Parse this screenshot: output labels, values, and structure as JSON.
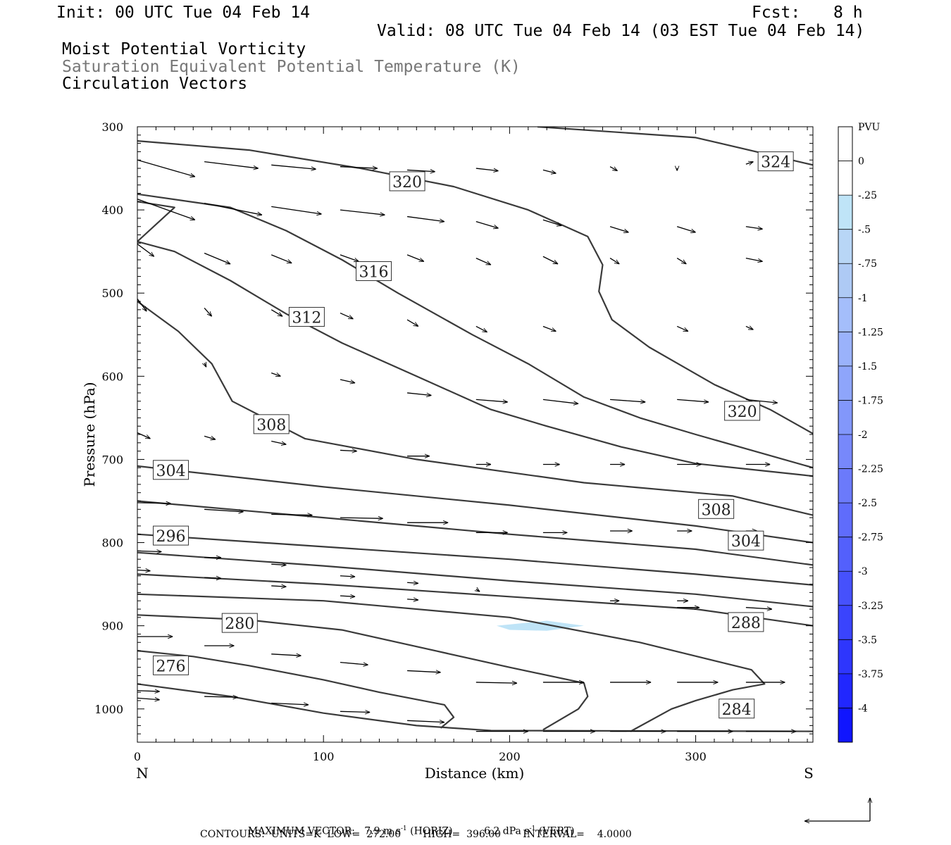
{
  "header": {
    "init": "Init: 00 UTC Tue 04 Feb 14",
    "fcst_label": "Fcst:",
    "fcst_value": "8 h",
    "valid": "Valid: 08 UTC Tue 04 Feb 14 (03 EST Tue 04 Feb 14)",
    "field1": "Moist Potential Vorticity",
    "field2": "Saturation Equivalent Potential Temperature (K)",
    "field3": "Circulation Vectors"
  },
  "footer": {
    "max_vector_label": "MAXIMUM VECTOR:",
    "horiz_value": "7.9",
    "horiz_unit": "m s",
    "horiz_tag": "(HORIZ)",
    "vert_value": "6.2",
    "vert_unit": "dPa s",
    "vert_tag": "(VERT)",
    "exp": "-1",
    "contours_line": "CONTOURS:  UNITS=K  LOW=  272.00       HIGH=  396.00       INTERVAL=    4.0000"
  },
  "colors": {
    "contour": "#3a3a3a",
    "vector": "#000000",
    "mpv_fill": "#bfe4f7",
    "colorbar": [
      "#ffffff",
      "#ffffff",
      "#bfe4f7",
      "#b8d6f6",
      "#aecaf5",
      "#a4befb",
      "#9ab2fb",
      "#8ea5fb",
      "#8297fb",
      "#7788fb",
      "#6b7afb",
      "#5f6cfc",
      "#5360fc",
      "#4651fc",
      "#3a44fd",
      "#2e36fd",
      "#2127fe",
      "#1015fe"
    ]
  },
  "chart_data": {
    "type": "cross-section",
    "xlabel": "Distance (km)",
    "ylabel": "Pressure (hPa)",
    "xlim": [
      0,
      363
    ],
    "ylim": [
      300,
      1040
    ],
    "x_ticks": [
      "0",
      "100",
      "200",
      "300"
    ],
    "y_ticks": [
      "300",
      "400",
      "500",
      "600",
      "700",
      "800",
      "900",
      "1000"
    ],
    "left_end_label": "N",
    "right_end_label": "S",
    "colorbar": {
      "unit": "PVU",
      "labels": [
        "0",
        "-.25",
        "-.5",
        "-.75",
        "-1",
        "-1.25",
        "-1.5",
        "-1.75",
        "-2",
        "-2.25",
        "-2.5",
        "-2.75",
        "-3",
        "-3.25",
        "-3.5",
        "-3.75",
        "-4"
      ]
    },
    "contours": [
      {
        "value": 324,
        "points": [
          [
            215,
            300
          ],
          [
            300,
            313
          ],
          [
            363,
            346
          ]
        ],
        "label": {
          "text": "324",
          "at": [
            343,
            342
          ]
        }
      },
      {
        "value": 320,
        "points": [
          [
            0,
            317
          ],
          [
            60,
            328
          ],
          [
            120,
            350
          ],
          [
            170,
            372
          ],
          [
            210,
            400
          ],
          [
            242,
            432
          ],
          [
            250,
            466
          ],
          [
            248,
            498
          ],
          [
            255,
            532
          ],
          [
            275,
            565
          ],
          [
            310,
            610
          ],
          [
            340,
            640
          ],
          [
            363,
            669
          ]
        ],
        "label": {
          "text": "320",
          "at": [
            145,
            366
          ],
          "at2": [
            325,
            642
          ]
        }
      },
      {
        "value": 316,
        "points": [
          [
            0,
            381
          ],
          [
            50,
            397
          ],
          [
            80,
            425
          ],
          [
            110,
            460
          ],
          [
            140,
            500
          ],
          [
            180,
            550
          ],
          [
            210,
            585
          ],
          [
            240,
            625
          ],
          [
            270,
            650
          ],
          [
            300,
            670
          ],
          [
            363,
            710
          ]
        ],
        "label": {
          "text": "316",
          "at": [
            127,
            474
          ]
        }
      },
      {
        "value": 312,
        "points": [
          [
            0,
            390
          ],
          [
            20,
            397
          ],
          [
            0,
            438
          ],
          [
            20,
            450
          ],
          [
            50,
            485
          ],
          [
            80,
            525
          ],
          [
            110,
            560
          ],
          [
            150,
            600
          ],
          [
            190,
            640
          ],
          [
            220,
            660
          ],
          [
            260,
            685
          ],
          [
            300,
            705
          ],
          [
            363,
            720
          ]
        ],
        "label": {
          "text": "312",
          "at": [
            91,
            529
          ]
        }
      },
      {
        "value": 308,
        "points": [
          [
            0,
            510
          ],
          [
            22,
            546
          ],
          [
            40,
            585
          ],
          [
            51,
            630
          ],
          [
            90,
            675
          ],
          [
            150,
            700
          ],
          [
            240,
            728
          ],
          [
            320,
            744
          ],
          [
            363,
            767
          ]
        ],
        "label": {
          "text": "308",
          "at": [
            72,
            658
          ],
          "at2": [
            311,
            760
          ]
        }
      },
      {
        "value": 304,
        "points": [
          [
            0,
            708
          ],
          [
            100,
            733
          ],
          [
            200,
            755
          ],
          [
            300,
            780
          ],
          [
            363,
            800
          ]
        ],
        "label": {
          "text": "304",
          "at": [
            18,
            713
          ],
          "at2": [
            327,
            798
          ]
        }
      },
      {
        "value": 300,
        "points": [
          [
            0,
            750
          ],
          [
            100,
            770
          ],
          [
            200,
            790
          ],
          [
            300,
            808
          ],
          [
            363,
            827
          ]
        ],
        "label": null
      },
      {
        "value": 296,
        "points": [
          [
            0,
            790
          ],
          [
            100,
            805
          ],
          [
            200,
            820
          ],
          [
            300,
            838
          ],
          [
            363,
            851
          ]
        ],
        "label": {
          "text": "296",
          "at": [
            18,
            792
          ]
        }
      },
      {
        "value": 292,
        "points": [
          [
            0,
            812
          ],
          [
            100,
            828
          ],
          [
            200,
            846
          ],
          [
            300,
            862
          ],
          [
            363,
            877
          ]
        ],
        "label": null
      },
      {
        "value": 288,
        "points": [
          [
            0,
            838
          ],
          [
            100,
            850
          ],
          [
            200,
            865
          ],
          [
            300,
            880
          ],
          [
            363,
            900
          ]
        ],
        "label": {
          "text": "288",
          "at": [
            327,
            896
          ]
        }
      },
      {
        "value": 284,
        "points": [
          [
            0,
            862
          ],
          [
            100,
            870
          ],
          [
            200,
            890
          ],
          [
            270,
            920
          ],
          [
            330,
            953
          ],
          [
            337,
            970
          ],
          [
            320,
            977
          ],
          [
            300,
            990
          ],
          [
            287,
            1000
          ],
          [
            265,
            1027
          ]
        ],
        "label": {
          "text": "284",
          "at": [
            322,
            1000
          ]
        }
      },
      {
        "value": 280,
        "points": [
          [
            0,
            887
          ],
          [
            60,
            893
          ],
          [
            110,
            905
          ],
          [
            160,
            930
          ],
          [
            200,
            950
          ],
          [
            240,
            969
          ],
          [
            242,
            985
          ],
          [
            237,
            1000
          ],
          [
            218,
            1025
          ]
        ],
        "label": {
          "text": "280",
          "at": [
            55,
            897
          ]
        }
      },
      {
        "value": 276,
        "points": [
          [
            0,
            930
          ],
          [
            30,
            937
          ],
          [
            60,
            948
          ],
          [
            100,
            965
          ],
          [
            130,
            980
          ],
          [
            165,
            995
          ],
          [
            170,
            1010
          ],
          [
            163,
            1023
          ]
        ],
        "label": {
          "text": "276",
          "at": [
            18,
            948
          ]
        }
      },
      {
        "value": 272,
        "points": [
          [
            0,
            970
          ],
          [
            50,
            985
          ],
          [
            100,
            1005
          ],
          [
            150,
            1020
          ],
          [
            190,
            1026
          ],
          [
            363,
            1027
          ]
        ],
        "label": null
      }
    ],
    "mpv_area": [
      [
        193,
        900
      ],
      [
        220,
        894
      ],
      [
        240,
        900
      ],
      [
        220,
        906
      ],
      [
        200,
        905
      ]
    ],
    "vectors": [
      [
        0,
        340,
        31,
        20
      ],
      [
        0,
        387,
        31,
        25
      ],
      [
        0,
        441,
        9,
        15
      ],
      [
        0,
        507,
        5,
        15
      ],
      [
        0,
        668,
        7,
        7
      ],
      [
        0,
        752,
        18,
        1
      ],
      [
        0,
        810,
        13,
        1
      ],
      [
        0,
        833,
        7,
        1
      ],
      [
        0,
        913,
        19,
        0
      ],
      [
        0,
        978,
        12,
        1
      ],
      [
        0,
        987,
        12,
        2
      ],
      [
        36,
        342,
        29,
        8
      ],
      [
        36,
        392,
        31,
        14
      ],
      [
        36,
        452,
        14,
        13
      ],
      [
        36,
        518,
        4,
        10
      ],
      [
        36,
        584,
        1,
        5
      ],
      [
        36,
        672,
        6,
        4
      ],
      [
        36,
        760,
        21,
        3
      ],
      [
        36,
        818,
        9,
        0
      ],
      [
        36,
        842,
        9,
        1
      ],
      [
        36,
        924,
        16,
        0
      ],
      [
        36,
        985,
        18,
        1
      ],
      [
        72,
        346,
        24,
        5
      ],
      [
        72,
        396,
        27,
        9
      ],
      [
        72,
        454,
        11,
        10
      ],
      [
        72,
        520,
        6,
        8
      ],
      [
        72,
        596,
        5,
        4
      ],
      [
        72,
        678,
        8,
        4
      ],
      [
        72,
        766,
        22,
        1
      ],
      [
        72,
        826,
        8,
        1
      ],
      [
        72,
        852,
        8,
        1
      ],
      [
        72,
        934,
        16,
        2
      ],
      [
        72,
        993,
        20,
        2
      ],
      [
        109,
        348,
        20,
        2
      ],
      [
        109,
        400,
        24,
        6
      ],
      [
        109,
        454,
        10,
        8
      ],
      [
        109,
        524,
        7,
        7
      ],
      [
        109,
        604,
        8,
        4
      ],
      [
        109,
        689,
        9,
        1
      ],
      [
        109,
        770,
        23,
        1
      ],
      [
        109,
        840,
        8,
        1
      ],
      [
        109,
        864,
        8,
        1
      ],
      [
        109,
        944,
        15,
        3
      ],
      [
        109,
        1003,
        16,
        1
      ],
      [
        145,
        352,
        15,
        2
      ],
      [
        145,
        408,
        20,
        6
      ],
      [
        145,
        454,
        9,
        8
      ],
      [
        145,
        532,
        6,
        8
      ],
      [
        145,
        620,
        13,
        3
      ],
      [
        145,
        696,
        12,
        0
      ],
      [
        145,
        776,
        22,
        0
      ],
      [
        145,
        848,
        6,
        1
      ],
      [
        145,
        868,
        6,
        1
      ],
      [
        145,
        954,
        18,
        2
      ],
      [
        145,
        1014,
        20,
        2
      ],
      [
        182,
        350,
        12,
        3
      ],
      [
        182,
        414,
        12,
        8
      ],
      [
        182,
        458,
        8,
        8
      ],
      [
        182,
        540,
        6,
        7
      ],
      [
        182,
        628,
        17,
        3
      ],
      [
        182,
        706,
        8,
        0
      ],
      [
        182,
        788,
        17,
        0
      ],
      [
        182,
        856,
        2,
        3
      ],
      [
        182,
        876,
        0,
        0
      ],
      [
        182,
        968,
        22,
        1
      ],
      [
        182,
        1027,
        28,
        0
      ],
      [
        218,
        352,
        7,
        4
      ],
      [
        218,
        412,
        10,
        7
      ],
      [
        218,
        456,
        8,
        9
      ],
      [
        218,
        540,
        7,
        6
      ],
      [
        218,
        628,
        19,
        5
      ],
      [
        218,
        706,
        9,
        0
      ],
      [
        218,
        788,
        13,
        0
      ],
      [
        218,
        868,
        0,
        0
      ],
      [
        218,
        870,
        0,
        0
      ],
      [
        218,
        968,
        22,
        0
      ],
      [
        218,
        1027,
        28,
        0
      ],
      [
        254,
        348,
        4,
        5
      ],
      [
        254,
        420,
        10,
        7
      ],
      [
        254,
        458,
        5,
        7
      ],
      [
        254,
        540,
        0,
        0
      ],
      [
        254,
        628,
        19,
        3
      ],
      [
        254,
        706,
        8,
        0
      ],
      [
        254,
        786,
        12,
        0
      ],
      [
        254,
        870,
        0,
        0
      ],
      [
        254,
        870,
        5,
        0
      ],
      [
        254,
        968,
        22,
        0
      ],
      [
        254,
        1027,
        30,
        0
      ],
      [
        290,
        350,
        0,
        3
      ],
      [
        290,
        420,
        10,
        7
      ],
      [
        290,
        458,
        5,
        7
      ],
      [
        290,
        540,
        6,
        6
      ],
      [
        290,
        628,
        17,
        3
      ],
      [
        290,
        706,
        13,
        0
      ],
      [
        290,
        786,
        8,
        0
      ],
      [
        290,
        870,
        6,
        0
      ],
      [
        290,
        878,
        12,
        0
      ],
      [
        290,
        968,
        22,
        0
      ],
      [
        290,
        1027,
        30,
        0
      ],
      [
        327,
        345,
        4,
        -3
      ],
      [
        327,
        420,
        9,
        3
      ],
      [
        327,
        458,
        9,
        4
      ],
      [
        327,
        540,
        4,
        4
      ],
      [
        327,
        628,
        17,
        4
      ],
      [
        327,
        706,
        13,
        0
      ],
      [
        327,
        786,
        6,
        0
      ],
      [
        327,
        878,
        0,
        0
      ],
      [
        327,
        878,
        14,
        2
      ],
      [
        327,
        968,
        21,
        0
      ],
      [
        327,
        1027,
        27,
        0
      ]
    ]
  }
}
